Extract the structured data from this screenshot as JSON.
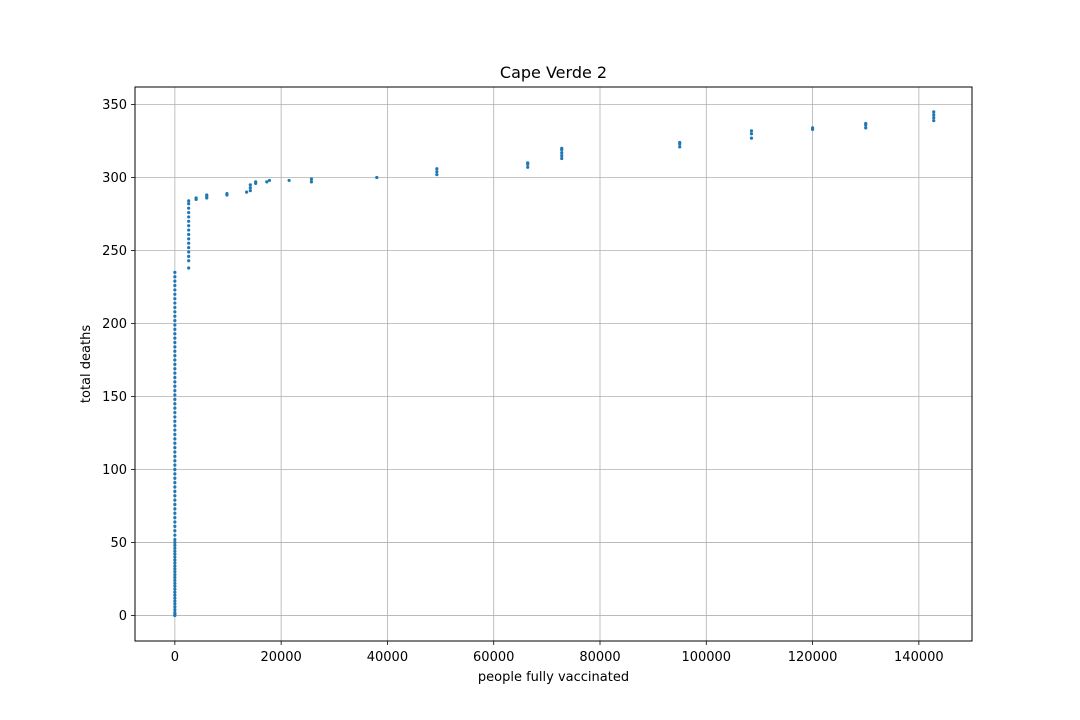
{
  "chart_data": {
    "type": "scatter",
    "title": "Cape Verde 2",
    "xlabel": "people fully vaccinated",
    "ylabel": "total deaths",
    "xlim": [
      -7500,
      150000
    ],
    "ylim": [
      -17.5,
      362
    ],
    "xticks": [
      0,
      20000,
      40000,
      60000,
      80000,
      100000,
      120000,
      140000
    ],
    "yticks": [
      0,
      50,
      100,
      150,
      200,
      250,
      300,
      350
    ],
    "grid": true,
    "marker_color": "#1f77b4",
    "series": [
      {
        "points": [
          [
            0,
            0
          ],
          [
            0,
            1
          ],
          [
            0,
            2
          ],
          [
            0,
            4
          ],
          [
            0,
            6
          ],
          [
            0,
            8
          ],
          [
            0,
            10
          ],
          [
            0,
            12
          ],
          [
            0,
            14
          ],
          [
            0,
            16
          ],
          [
            0,
            18
          ],
          [
            0,
            20
          ],
          [
            0,
            22
          ],
          [
            0,
            24
          ],
          [
            0,
            26
          ],
          [
            0,
            28
          ],
          [
            0,
            30
          ],
          [
            0,
            32
          ],
          [
            0,
            34
          ],
          [
            0,
            36
          ],
          [
            0,
            38
          ],
          [
            0,
            40
          ],
          [
            0,
            42
          ],
          [
            0,
            44
          ],
          [
            0,
            46
          ],
          [
            0,
            48
          ],
          [
            0,
            50
          ],
          [
            0,
            52
          ],
          [
            0,
            55
          ],
          [
            0,
            58
          ],
          [
            0,
            61
          ],
          [
            0,
            64
          ],
          [
            0,
            67
          ],
          [
            0,
            70
          ],
          [
            0,
            73
          ],
          [
            0,
            76
          ],
          [
            0,
            79
          ],
          [
            0,
            82
          ],
          [
            0,
            85
          ],
          [
            0,
            88
          ],
          [
            0,
            91
          ],
          [
            0,
            94
          ],
          [
            0,
            97
          ],
          [
            0,
            100
          ],
          [
            0,
            103
          ],
          [
            0,
            106
          ],
          [
            0,
            109
          ],
          [
            0,
            112
          ],
          [
            0,
            115
          ],
          [
            0,
            118
          ],
          [
            0,
            121
          ],
          [
            0,
            124
          ],
          [
            0,
            127
          ],
          [
            0,
            130
          ],
          [
            0,
            133
          ],
          [
            0,
            136
          ],
          [
            0,
            139
          ],
          [
            0,
            142
          ],
          [
            0,
            145
          ],
          [
            0,
            148
          ],
          [
            0,
            151
          ],
          [
            0,
            154
          ],
          [
            0,
            157
          ],
          [
            0,
            160
          ],
          [
            0,
            163
          ],
          [
            0,
            166
          ],
          [
            0,
            169
          ],
          [
            0,
            172
          ],
          [
            0,
            175
          ],
          [
            0,
            178
          ],
          [
            0,
            181
          ],
          [
            0,
            184
          ],
          [
            0,
            187
          ],
          [
            0,
            190
          ],
          [
            0,
            193
          ],
          [
            0,
            196
          ],
          [
            0,
            199
          ],
          [
            0,
            202
          ],
          [
            0,
            205
          ],
          [
            0,
            208
          ],
          [
            0,
            211
          ],
          [
            0,
            214
          ],
          [
            0,
            217
          ],
          [
            0,
            220
          ],
          [
            0,
            223
          ],
          [
            0,
            226
          ],
          [
            0,
            229
          ],
          [
            0,
            232
          ],
          [
            0,
            235
          ],
          [
            2600,
            238
          ],
          [
            2600,
            243
          ],
          [
            2600,
            246
          ],
          [
            2600,
            249
          ],
          [
            2600,
            252
          ],
          [
            2600,
            255
          ],
          [
            2600,
            258
          ],
          [
            2600,
            261
          ],
          [
            2600,
            264
          ],
          [
            2600,
            267
          ],
          [
            2600,
            270
          ],
          [
            2600,
            273
          ],
          [
            2600,
            276
          ],
          [
            2600,
            279
          ],
          [
            2600,
            282
          ],
          [
            2600,
            284
          ],
          [
            4000,
            285
          ],
          [
            4000,
            286
          ],
          [
            6000,
            286
          ],
          [
            6000,
            287
          ],
          [
            6000,
            288
          ],
          [
            9800,
            288
          ],
          [
            9800,
            289
          ],
          [
            13500,
            290
          ],
          [
            14200,
            291
          ],
          [
            14200,
            293
          ],
          [
            14200,
            295
          ],
          [
            15200,
            296
          ],
          [
            15200,
            297
          ],
          [
            17300,
            297
          ],
          [
            17800,
            298
          ],
          [
            21500,
            298
          ],
          [
            25700,
            297
          ],
          [
            25700,
            299
          ],
          [
            38000,
            300
          ],
          [
            49300,
            302
          ],
          [
            49300,
            304
          ],
          [
            49300,
            306
          ],
          [
            66400,
            307
          ],
          [
            66400,
            309
          ],
          [
            66400,
            310
          ],
          [
            72800,
            313
          ],
          [
            72800,
            315
          ],
          [
            72800,
            317
          ],
          [
            72800,
            319
          ],
          [
            72800,
            320
          ],
          [
            95000,
            321
          ],
          [
            95000,
            323
          ],
          [
            95000,
            324
          ],
          [
            108500,
            327
          ],
          [
            108500,
            330
          ],
          [
            108500,
            332
          ],
          [
            120000,
            333
          ],
          [
            120000,
            334
          ],
          [
            130000,
            334
          ],
          [
            130000,
            336
          ],
          [
            130000,
            337
          ],
          [
            142800,
            339
          ],
          [
            142800,
            341
          ],
          [
            142800,
            343
          ],
          [
            142800,
            345
          ]
        ]
      }
    ]
  }
}
